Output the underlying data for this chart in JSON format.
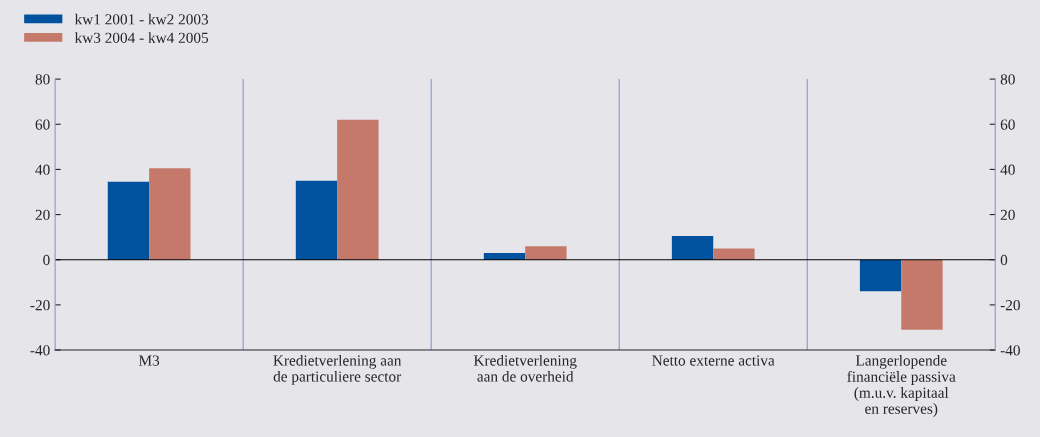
{
  "chart_data": {
    "type": "bar",
    "categories": [
      "M3",
      "Kredietverlening aan\nde particuliere sector",
      "Kredietverlening\naan de overheid",
      "Netto externe activa",
      "Langerlopende\nfinanciële passiva\n(m.u.v. kapitaal\nen reserves)"
    ],
    "series": [
      {
        "name": "kw1 2001 - kw2 2003",
        "color": "#00519e",
        "values": [
          34.5,
          35,
          3,
          10.5,
          -14
        ]
      },
      {
        "name": "kw3 2004 - kw4 2005",
        "color": "#c5796b",
        "values": [
          40.5,
          62,
          6,
          5,
          -31
        ]
      }
    ],
    "ylim": [
      -40,
      80
    ],
    "yticks": [
      -40,
      -20,
      0,
      20,
      40,
      60,
      80
    ],
    "y2lim": [
      -40,
      80
    ],
    "y2ticks": [
      -40,
      -20,
      0,
      20,
      40,
      60,
      80
    ],
    "ref_lines": [
      {
        "axis": "y",
        "value": 0,
        "color": "#000000"
      }
    ],
    "grid": "x",
    "legend": "top left"
  }
}
